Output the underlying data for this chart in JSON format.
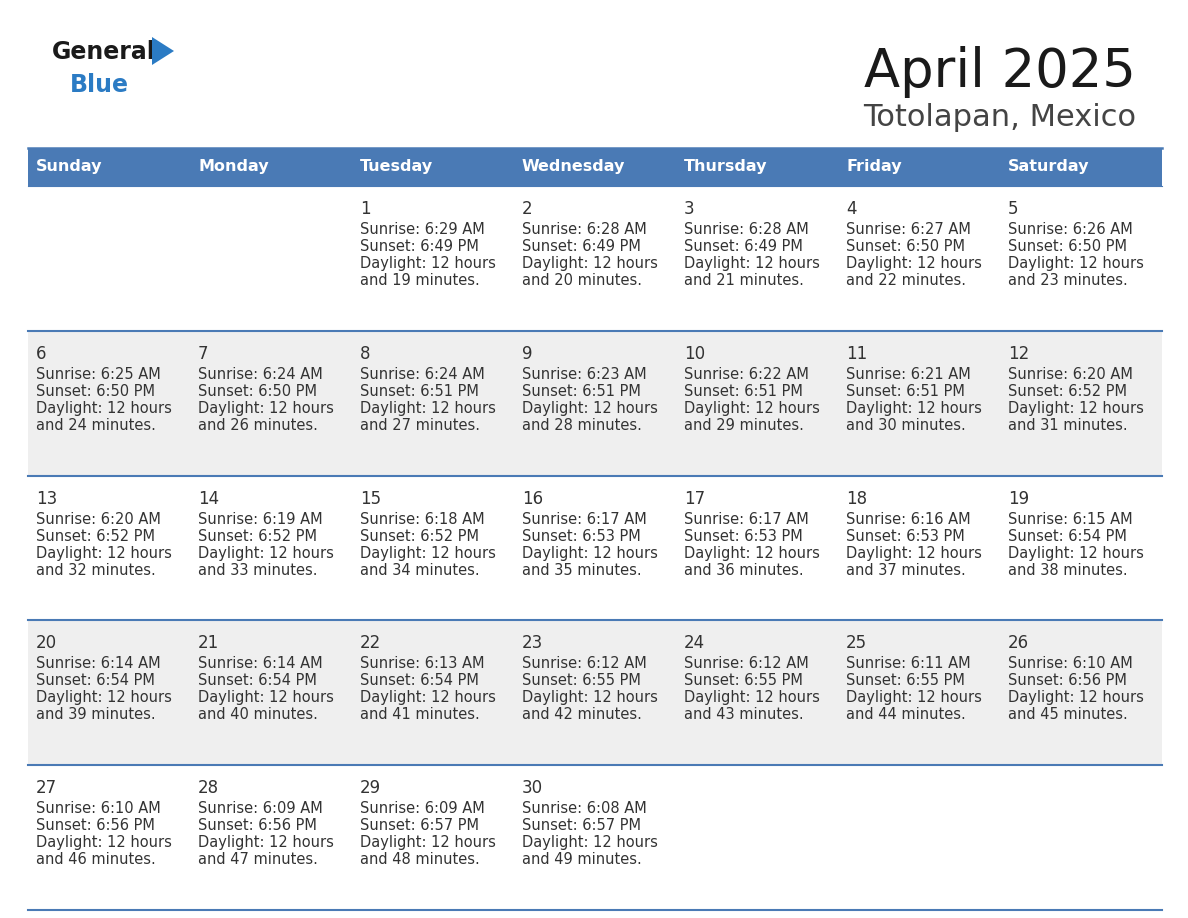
{
  "title": "April 2025",
  "subtitle": "Totolapan, Mexico",
  "header_bg": "#4a7ab5",
  "header_text_color": "#ffffff",
  "day_names": [
    "Sunday",
    "Monday",
    "Tuesday",
    "Wednesday",
    "Thursday",
    "Friday",
    "Saturday"
  ],
  "cell_bg_light": "#efefef",
  "cell_bg_white": "#ffffff",
  "cell_text_color": "#333333",
  "title_color": "#1a1a1a",
  "subtitle_color": "#444444",
  "logo_general_color": "#1a1a1a",
  "logo_blue_color": "#2b7bc4",
  "grid_line_color": "#4a7ab5",
  "days": [
    {
      "day": 1,
      "col": 2,
      "row": 0,
      "sunrise": "6:29 AM",
      "sunset": "6:49 PM",
      "minutes": 19
    },
    {
      "day": 2,
      "col": 3,
      "row": 0,
      "sunrise": "6:28 AM",
      "sunset": "6:49 PM",
      "minutes": 20
    },
    {
      "day": 3,
      "col": 4,
      "row": 0,
      "sunrise": "6:28 AM",
      "sunset": "6:49 PM",
      "minutes": 21
    },
    {
      "day": 4,
      "col": 5,
      "row": 0,
      "sunrise": "6:27 AM",
      "sunset": "6:50 PM",
      "minutes": 22
    },
    {
      "day": 5,
      "col": 6,
      "row": 0,
      "sunrise": "6:26 AM",
      "sunset": "6:50 PM",
      "minutes": 23
    },
    {
      "day": 6,
      "col": 0,
      "row": 1,
      "sunrise": "6:25 AM",
      "sunset": "6:50 PM",
      "minutes": 24
    },
    {
      "day": 7,
      "col": 1,
      "row": 1,
      "sunrise": "6:24 AM",
      "sunset": "6:50 PM",
      "minutes": 26
    },
    {
      "day": 8,
      "col": 2,
      "row": 1,
      "sunrise": "6:24 AM",
      "sunset": "6:51 PM",
      "minutes": 27
    },
    {
      "day": 9,
      "col": 3,
      "row": 1,
      "sunrise": "6:23 AM",
      "sunset": "6:51 PM",
      "minutes": 28
    },
    {
      "day": 10,
      "col": 4,
      "row": 1,
      "sunrise": "6:22 AM",
      "sunset": "6:51 PM",
      "minutes": 29
    },
    {
      "day": 11,
      "col": 5,
      "row": 1,
      "sunrise": "6:21 AM",
      "sunset": "6:51 PM",
      "minutes": 30
    },
    {
      "day": 12,
      "col": 6,
      "row": 1,
      "sunrise": "6:20 AM",
      "sunset": "6:52 PM",
      "minutes": 31
    },
    {
      "day": 13,
      "col": 0,
      "row": 2,
      "sunrise": "6:20 AM",
      "sunset": "6:52 PM",
      "minutes": 32
    },
    {
      "day": 14,
      "col": 1,
      "row": 2,
      "sunrise": "6:19 AM",
      "sunset": "6:52 PM",
      "minutes": 33
    },
    {
      "day": 15,
      "col": 2,
      "row": 2,
      "sunrise": "6:18 AM",
      "sunset": "6:52 PM",
      "minutes": 34
    },
    {
      "day": 16,
      "col": 3,
      "row": 2,
      "sunrise": "6:17 AM",
      "sunset": "6:53 PM",
      "minutes": 35
    },
    {
      "day": 17,
      "col": 4,
      "row": 2,
      "sunrise": "6:17 AM",
      "sunset": "6:53 PM",
      "minutes": 36
    },
    {
      "day": 18,
      "col": 5,
      "row": 2,
      "sunrise": "6:16 AM",
      "sunset": "6:53 PM",
      "minutes": 37
    },
    {
      "day": 19,
      "col": 6,
      "row": 2,
      "sunrise": "6:15 AM",
      "sunset": "6:54 PM",
      "minutes": 38
    },
    {
      "day": 20,
      "col": 0,
      "row": 3,
      "sunrise": "6:14 AM",
      "sunset": "6:54 PM",
      "minutes": 39
    },
    {
      "day": 21,
      "col": 1,
      "row": 3,
      "sunrise": "6:14 AM",
      "sunset": "6:54 PM",
      "minutes": 40
    },
    {
      "day": 22,
      "col": 2,
      "row": 3,
      "sunrise": "6:13 AM",
      "sunset": "6:54 PM",
      "minutes": 41
    },
    {
      "day": 23,
      "col": 3,
      "row": 3,
      "sunrise": "6:12 AM",
      "sunset": "6:55 PM",
      "minutes": 42
    },
    {
      "day": 24,
      "col": 4,
      "row": 3,
      "sunrise": "6:12 AM",
      "sunset": "6:55 PM",
      "minutes": 43
    },
    {
      "day": 25,
      "col": 5,
      "row": 3,
      "sunrise": "6:11 AM",
      "sunset": "6:55 PM",
      "minutes": 44
    },
    {
      "day": 26,
      "col": 6,
      "row": 3,
      "sunrise": "6:10 AM",
      "sunset": "6:56 PM",
      "minutes": 45
    },
    {
      "day": 27,
      "col": 0,
      "row": 4,
      "sunrise": "6:10 AM",
      "sunset": "6:56 PM",
      "minutes": 46
    },
    {
      "day": 28,
      "col": 1,
      "row": 4,
      "sunrise": "6:09 AM",
      "sunset": "6:56 PM",
      "minutes": 47
    },
    {
      "day": 29,
      "col": 2,
      "row": 4,
      "sunrise": "6:09 AM",
      "sunset": "6:57 PM",
      "minutes": 48
    },
    {
      "day": 30,
      "col": 3,
      "row": 4,
      "sunrise": "6:08 AM",
      "sunset": "6:57 PM",
      "minutes": 49
    }
  ]
}
